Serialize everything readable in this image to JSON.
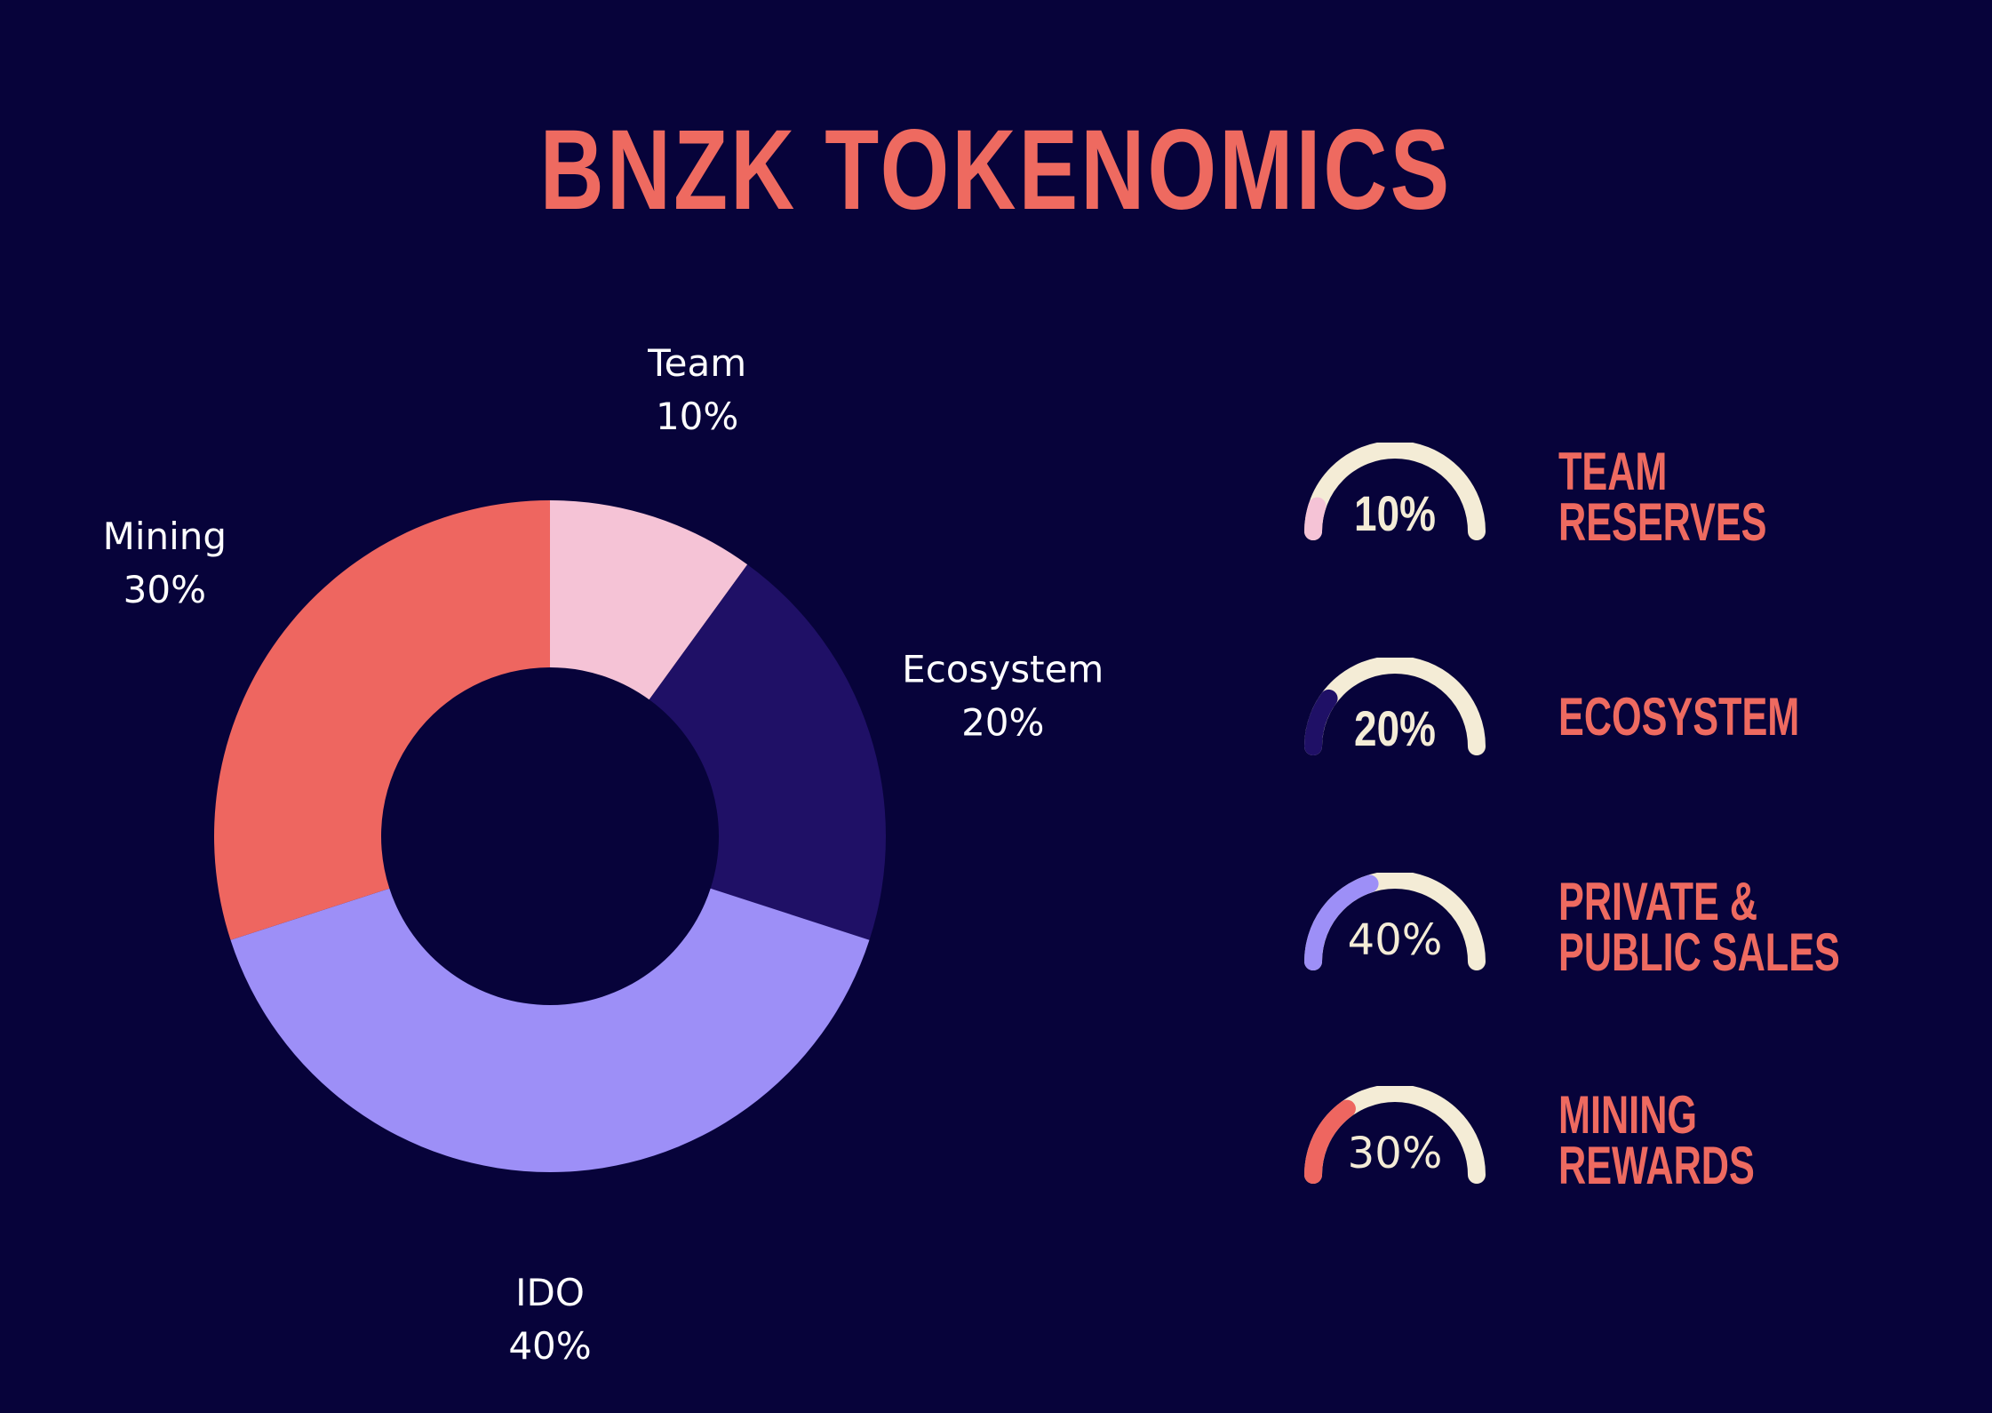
{
  "title": "BNZK TOKENOMICS",
  "chart_data": {
    "type": "pie",
    "donut": true,
    "start_angle_deg": 0,
    "direction": "clockwise",
    "slices": [
      {
        "label": "Team",
        "value": 10,
        "display": "10%",
        "color": "#f5c3d6"
      },
      {
        "label": "Ecosystem",
        "value": 20,
        "display": "20%",
        "color": "#1f1066"
      },
      {
        "label": "IDO",
        "value": 40,
        "display": "40%",
        "color": "#9d8ff7"
      },
      {
        "label": "Mining",
        "value": 30,
        "display": "30%",
        "color": "#ee6660"
      }
    ]
  },
  "gauges": [
    {
      "percent": 10,
      "display": "10%",
      "lines": [
        "TEAM",
        "RESERVES"
      ],
      "color": "#f5c3d6",
      "bold": true
    },
    {
      "percent": 20,
      "display": "20%",
      "lines": [
        "ECOSYSTEM"
      ],
      "color": "#1f1066",
      "bold": true
    },
    {
      "percent": 40,
      "display": "40%",
      "lines": [
        "PRIVATE &",
        "PUBLIC SALES"
      ],
      "color": "#9d8ff7",
      "bold": false
    },
    {
      "percent": 30,
      "display": "30%",
      "lines": [
        "MINING",
        "REWARDS"
      ],
      "color": "#ee6660",
      "bold": false
    }
  ],
  "colors": {
    "background": "#07033a",
    "accent": "#ee6a60",
    "gauge_track": "#f4ecd6",
    "text": "#ffffff"
  }
}
